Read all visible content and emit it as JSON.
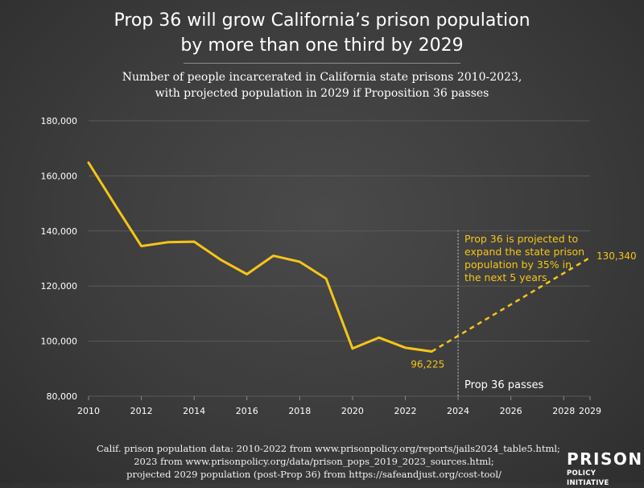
{
  "header": {
    "title_line1": "Prop 36 will grow California’s prison population",
    "title_line2": "by more than one third by 2029",
    "subtitle_line1": "Number of people incarcerated in California state prisons 2010-2023,",
    "subtitle_line2": "with projected population in 2029 if Proposition 36 passes"
  },
  "chart_data": {
    "type": "line",
    "title": "Prop 36 will grow California’s prison population by more than one third by 2029",
    "subtitle": "Number of people incarcerated in California state prisons 2010-2023, with projected population in 2029 if Proposition 36 passes",
    "xlabel": "",
    "ylabel": "",
    "xlim": [
      2010,
      2029
    ],
    "ylim": [
      80000,
      180000
    ],
    "x_ticks": [
      2010,
      2012,
      2014,
      2016,
      2018,
      2020,
      2022,
      2024,
      2026,
      2028,
      2029
    ],
    "y_ticks": [
      80000,
      100000,
      120000,
      140000,
      160000,
      180000
    ],
    "y_tick_labels": [
      "80,000",
      "100,000",
      "120,000",
      "140,000",
      "160,000",
      "180,000"
    ],
    "grid": "horizontal",
    "series": [
      {
        "style": "solid",
        "color": "#f5c518",
        "x": [
          2010,
          2011,
          2012,
          2013,
          2014,
          2015,
          2016,
          2017,
          2018,
          2019,
          2020,
          2021,
          2022,
          2023
        ],
        "y": [
          164800,
          149500,
          134500,
          135900,
          136100,
          129600,
          124300,
          131000,
          128800,
          122700,
          97300,
          101300,
          97600,
          96225
        ]
      },
      {
        "style": "dashed",
        "color": "#f5c518",
        "x": [
          2023,
          2029
        ],
        "y": [
          96225,
          130340
        ]
      }
    ],
    "data_labels": [
      {
        "x": 2023,
        "y": 96225,
        "text": "96,225"
      },
      {
        "x": 2029,
        "y": 130340,
        "text": "130,340"
      }
    ],
    "annotations": [
      {
        "x": 2024,
        "kind": "vertical-line",
        "label": "Prop 36 passes"
      },
      {
        "kind": "note",
        "color": "#f5c518",
        "lines": [
          "Prop 36 is projected to",
          "expand the state prison",
          "population by 35% in",
          "the next 5 years"
        ]
      }
    ]
  },
  "footer": {
    "line1": "Calif. prison population data: 2010-2022 from www.prisonpolicy.org/reports/jails2024_table5.html;",
    "line2": "2023 from www.prisonpolicy.org/data/prison_pops_2019_2023_sources.html;",
    "line3": "projected 2029 population (post-Prop 36) from https://safeandjust.org/cost-tool/"
  },
  "logo": {
    "main": "PRISON",
    "sub": "POLICY INITIATIVE"
  },
  "colors": {
    "accent": "#f5c518",
    "background": "#3c3c3c",
    "text": "#ffffff",
    "grid": "#5a5a5a"
  }
}
